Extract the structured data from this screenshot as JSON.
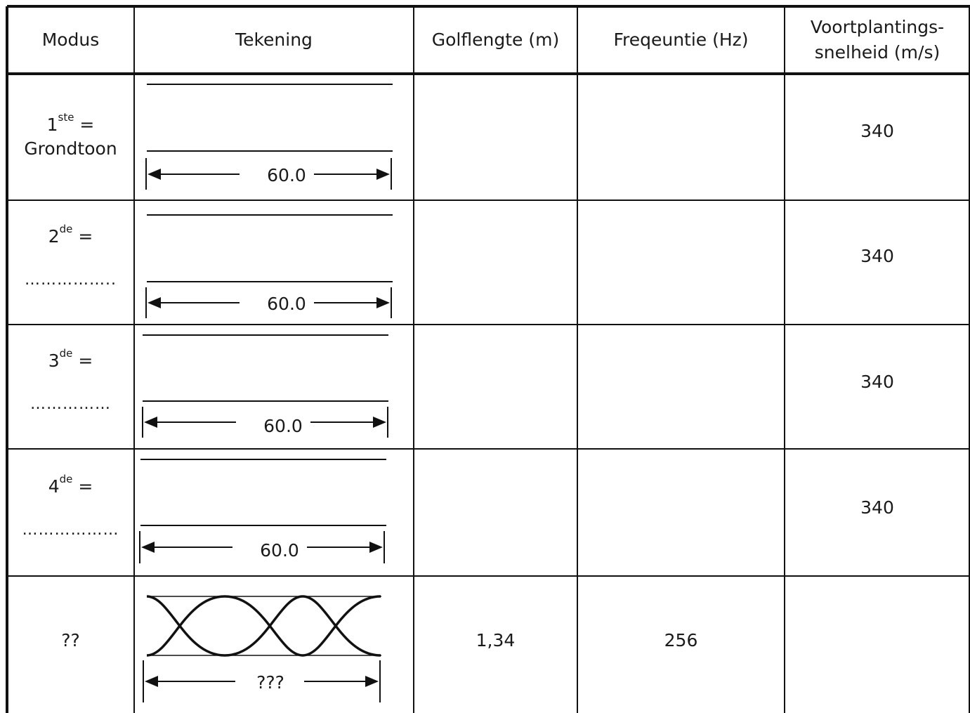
{
  "headers": {
    "modus": "Modus",
    "tekening": "Tekening",
    "golflengte": "Golflengte (m)",
    "frequentie": "Freqeuntie (Hz)",
    "snelheid_line1": "Voortplantings-",
    "snelheid_line2": "snelheid (m/s)"
  },
  "rows": [
    {
      "num": "1",
      "sup": "ste",
      "suffix": " =",
      "name": "Grondtoon",
      "dots": "",
      "dimension": "60.0",
      "golflengte": "",
      "frequentie": "",
      "snelheid": "340"
    },
    {
      "num": "2",
      "sup": "de",
      "suffix": "  =",
      "name": "",
      "dots": "……………..",
      "dimension": "60.0",
      "golflengte": "",
      "frequentie": "",
      "snelheid": "340"
    },
    {
      "num": "3",
      "sup": "de",
      "suffix": " =",
      "name": "",
      "dots": "……………",
      "dimension": "60.0",
      "golflengte": "",
      "frequentie": "",
      "snelheid": "340"
    },
    {
      "num": "4",
      "sup": "de",
      "suffix": " =",
      "name": "",
      "dots": "………………",
      "dimension": "60.0",
      "golflengte": "",
      "frequentie": "",
      "snelheid": "340"
    },
    {
      "mode": "??",
      "dimension": "???",
      "golflengte": "1,34",
      "frequentie": "256",
      "snelheid": ""
    }
  ]
}
